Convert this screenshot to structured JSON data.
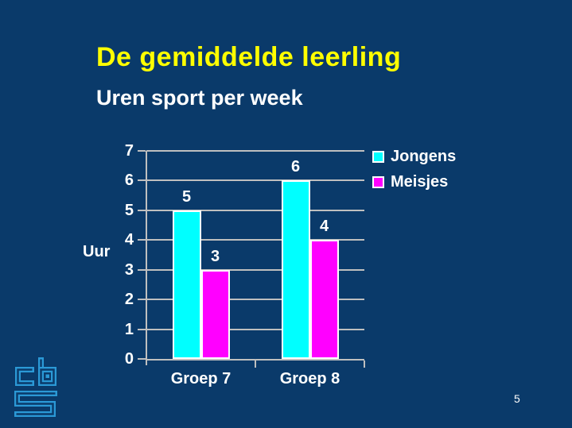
{
  "slide": {
    "title": "De gemiddelde leerling",
    "subtitle": "Uren sport per week",
    "page_number": "5"
  },
  "colors": {
    "background": "#0A3A6A",
    "title": "#FFFF00",
    "text": "#FFFFFF",
    "grid": "#BFBFBF",
    "bar_border": "#FFFFFF",
    "jongens": "#00FFFF",
    "meisjes": "#FF00FF",
    "logo": "#2B99D6"
  },
  "chart_data": {
    "type": "bar",
    "title": "Uren sport per week",
    "categories": [
      "Groep 7",
      "Groep 8"
    ],
    "series": [
      {
        "name": "Jongens",
        "color": "#00FFFF",
        "values": [
          5,
          6
        ]
      },
      {
        "name": "Meisjes",
        "color": "#FF00FF",
        "values": [
          3,
          4
        ]
      }
    ],
    "xlabel": "",
    "ylabel": "Uur",
    "ylim": [
      0,
      7
    ],
    "yticks": [
      0,
      1,
      2,
      3,
      4,
      5,
      6,
      7
    ],
    "grid": true,
    "data_labels": true,
    "legend_position": "right"
  },
  "logo": {
    "icon": "cbs-logo",
    "letters": "cbs"
  }
}
